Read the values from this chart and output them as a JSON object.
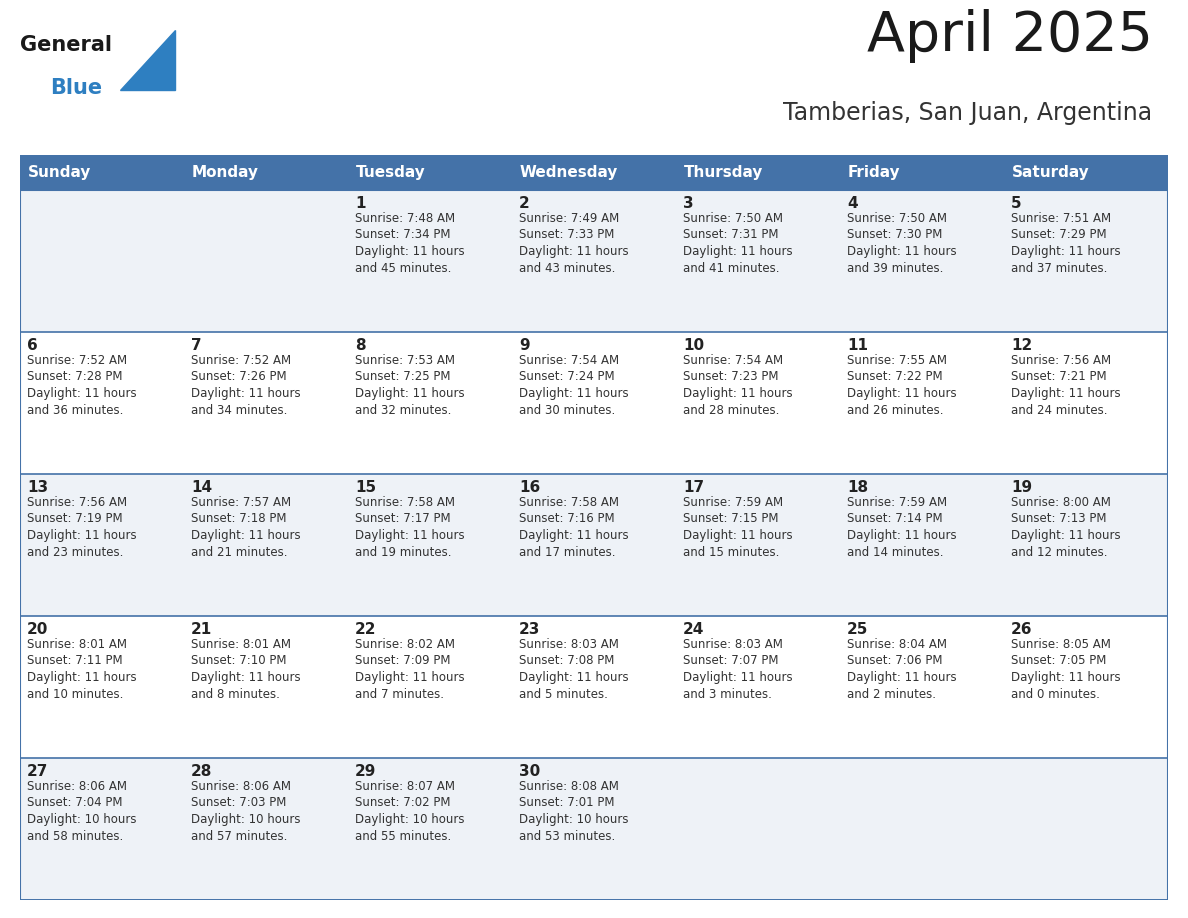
{
  "title": "April 2025",
  "subtitle": "Tamberias, San Juan, Argentina",
  "header_bg": "#4472a8",
  "header_text_color": "#ffffff",
  "header_days": [
    "Sunday",
    "Monday",
    "Tuesday",
    "Wednesday",
    "Thursday",
    "Friday",
    "Saturday"
  ],
  "row_bg_alt": "#eef2f7",
  "row_bg_main": "#ffffff",
  "cell_border_color": "#4472a8",
  "text_color": "#333333",
  "day_number_color": "#222222",
  "title_color": "#1a1a1a",
  "subtitle_color": "#333333",
  "logo_general_color": "#1a1a1a",
  "logo_blue_color": "#2e7fc1",
  "weeks": [
    [
      {
        "day": 0,
        "text": ""
      },
      {
        "day": 0,
        "text": ""
      },
      {
        "day": 1,
        "text": "Sunrise: 7:48 AM\nSunset: 7:34 PM\nDaylight: 11 hours\nand 45 minutes."
      },
      {
        "day": 2,
        "text": "Sunrise: 7:49 AM\nSunset: 7:33 PM\nDaylight: 11 hours\nand 43 minutes."
      },
      {
        "day": 3,
        "text": "Sunrise: 7:50 AM\nSunset: 7:31 PM\nDaylight: 11 hours\nand 41 minutes."
      },
      {
        "day": 4,
        "text": "Sunrise: 7:50 AM\nSunset: 7:30 PM\nDaylight: 11 hours\nand 39 minutes."
      },
      {
        "day": 5,
        "text": "Sunrise: 7:51 AM\nSunset: 7:29 PM\nDaylight: 11 hours\nand 37 minutes."
      }
    ],
    [
      {
        "day": 6,
        "text": "Sunrise: 7:52 AM\nSunset: 7:28 PM\nDaylight: 11 hours\nand 36 minutes."
      },
      {
        "day": 7,
        "text": "Sunrise: 7:52 AM\nSunset: 7:26 PM\nDaylight: 11 hours\nand 34 minutes."
      },
      {
        "day": 8,
        "text": "Sunrise: 7:53 AM\nSunset: 7:25 PM\nDaylight: 11 hours\nand 32 minutes."
      },
      {
        "day": 9,
        "text": "Sunrise: 7:54 AM\nSunset: 7:24 PM\nDaylight: 11 hours\nand 30 minutes."
      },
      {
        "day": 10,
        "text": "Sunrise: 7:54 AM\nSunset: 7:23 PM\nDaylight: 11 hours\nand 28 minutes."
      },
      {
        "day": 11,
        "text": "Sunrise: 7:55 AM\nSunset: 7:22 PM\nDaylight: 11 hours\nand 26 minutes."
      },
      {
        "day": 12,
        "text": "Sunrise: 7:56 AM\nSunset: 7:21 PM\nDaylight: 11 hours\nand 24 minutes."
      }
    ],
    [
      {
        "day": 13,
        "text": "Sunrise: 7:56 AM\nSunset: 7:19 PM\nDaylight: 11 hours\nand 23 minutes."
      },
      {
        "day": 14,
        "text": "Sunrise: 7:57 AM\nSunset: 7:18 PM\nDaylight: 11 hours\nand 21 minutes."
      },
      {
        "day": 15,
        "text": "Sunrise: 7:58 AM\nSunset: 7:17 PM\nDaylight: 11 hours\nand 19 minutes."
      },
      {
        "day": 16,
        "text": "Sunrise: 7:58 AM\nSunset: 7:16 PM\nDaylight: 11 hours\nand 17 minutes."
      },
      {
        "day": 17,
        "text": "Sunrise: 7:59 AM\nSunset: 7:15 PM\nDaylight: 11 hours\nand 15 minutes."
      },
      {
        "day": 18,
        "text": "Sunrise: 7:59 AM\nSunset: 7:14 PM\nDaylight: 11 hours\nand 14 minutes."
      },
      {
        "day": 19,
        "text": "Sunrise: 8:00 AM\nSunset: 7:13 PM\nDaylight: 11 hours\nand 12 minutes."
      }
    ],
    [
      {
        "day": 20,
        "text": "Sunrise: 8:01 AM\nSunset: 7:11 PM\nDaylight: 11 hours\nand 10 minutes."
      },
      {
        "day": 21,
        "text": "Sunrise: 8:01 AM\nSunset: 7:10 PM\nDaylight: 11 hours\nand 8 minutes."
      },
      {
        "day": 22,
        "text": "Sunrise: 8:02 AM\nSunset: 7:09 PM\nDaylight: 11 hours\nand 7 minutes."
      },
      {
        "day": 23,
        "text": "Sunrise: 8:03 AM\nSunset: 7:08 PM\nDaylight: 11 hours\nand 5 minutes."
      },
      {
        "day": 24,
        "text": "Sunrise: 8:03 AM\nSunset: 7:07 PM\nDaylight: 11 hours\nand 3 minutes."
      },
      {
        "day": 25,
        "text": "Sunrise: 8:04 AM\nSunset: 7:06 PM\nDaylight: 11 hours\nand 2 minutes."
      },
      {
        "day": 26,
        "text": "Sunrise: 8:05 AM\nSunset: 7:05 PM\nDaylight: 11 hours\nand 0 minutes."
      }
    ],
    [
      {
        "day": 27,
        "text": "Sunrise: 8:06 AM\nSunset: 7:04 PM\nDaylight: 10 hours\nand 58 minutes."
      },
      {
        "day": 28,
        "text": "Sunrise: 8:06 AM\nSunset: 7:03 PM\nDaylight: 10 hours\nand 57 minutes."
      },
      {
        "day": 29,
        "text": "Sunrise: 8:07 AM\nSunset: 7:02 PM\nDaylight: 10 hours\nand 55 minutes."
      },
      {
        "day": 30,
        "text": "Sunrise: 8:08 AM\nSunset: 7:01 PM\nDaylight: 10 hours\nand 53 minutes."
      },
      {
        "day": 0,
        "text": ""
      },
      {
        "day": 0,
        "text": ""
      },
      {
        "day": 0,
        "text": ""
      }
    ]
  ]
}
